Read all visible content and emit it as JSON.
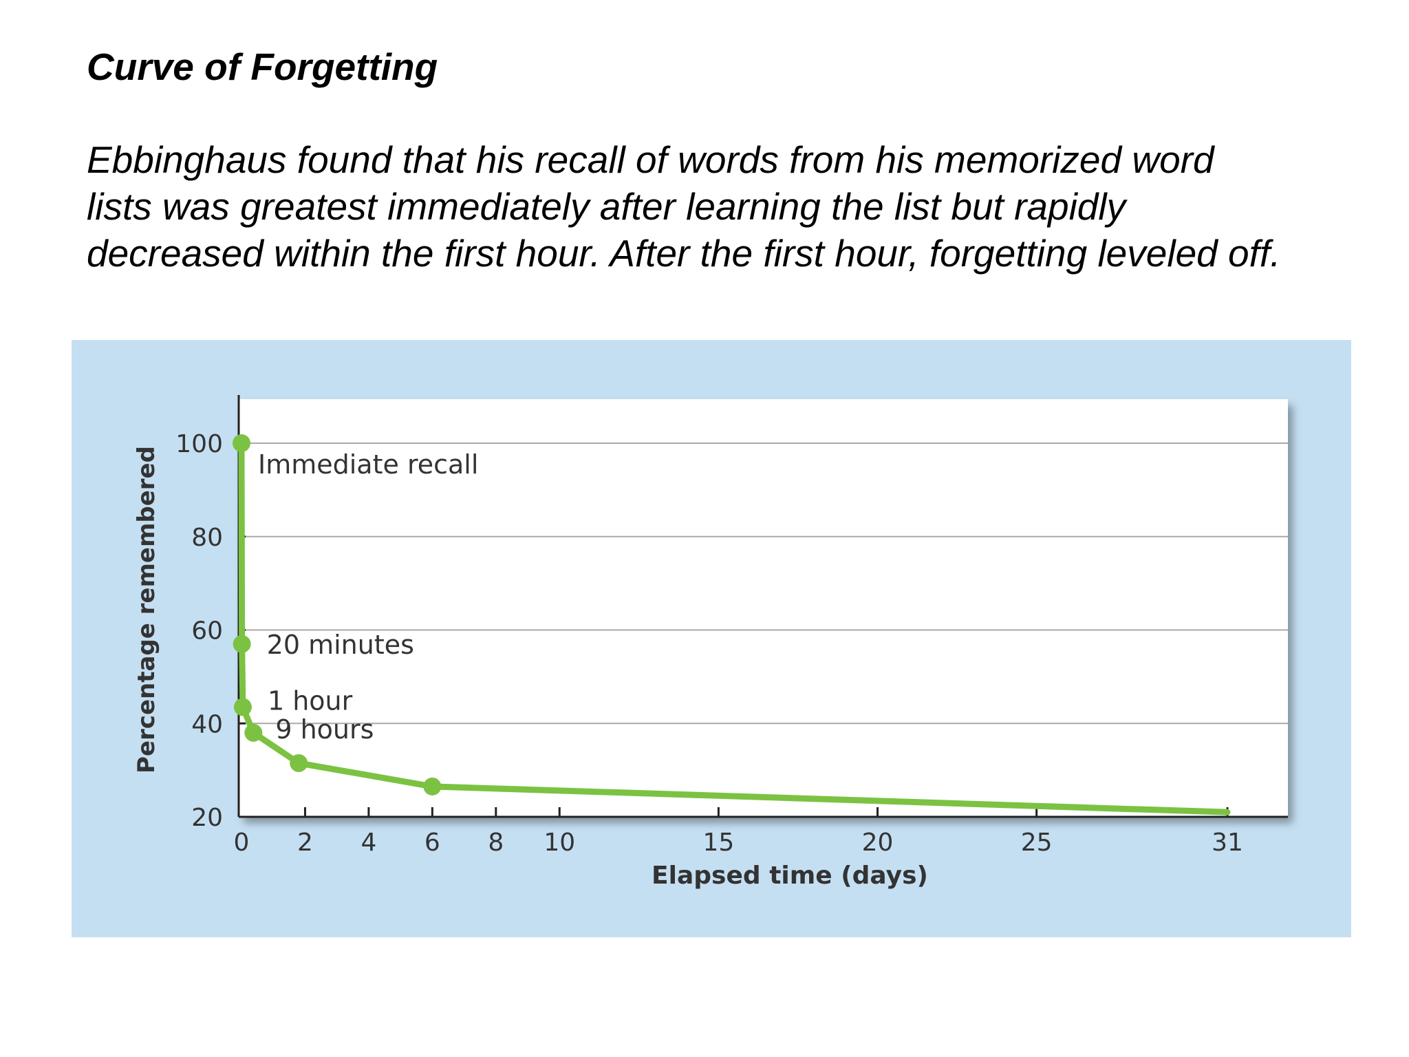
{
  "slide": {
    "title": "Curve of Forgetting",
    "body_lines": [
      "Ebbinghaus found that his recall of words from his memorized word",
      "lists was greatest immediately after learning the list but rapidly",
      "decreased within the first hour. After the first hour, forgetting leveled off."
    ]
  },
  "chart_data": {
    "type": "line",
    "title": "",
    "xlabel": "Elapsed time (days)",
    "ylabel": "Percentage remembered",
    "xlim": [
      0,
      31
    ],
    "ylim": [
      20,
      110
    ],
    "x_ticks": [
      0,
      2,
      4,
      6,
      8,
      10,
      15,
      20,
      25,
      31
    ],
    "y_ticks": [
      20,
      40,
      60,
      80,
      100
    ],
    "grid": true,
    "legend": "none",
    "series": [
      {
        "x": [
          0,
          0.014,
          0.042,
          0.375,
          1.8,
          6,
          31
        ],
        "y": [
          100,
          57,
          43.5,
          38,
          31.5,
          26.5,
          21
        ]
      }
    ],
    "annotations": [
      {
        "text": "Immediate recall",
        "x": 0,
        "y": 100
      },
      {
        "text": "20 minutes",
        "x": 0.014,
        "y": 57
      },
      {
        "text": "1 hour",
        "x": 0.042,
        "y": 43.5
      },
      {
        "text": "9 hours",
        "x": 0.375,
        "y": 38
      }
    ],
    "colors": {
      "panel_background": "#c5dff2",
      "plot_background": "#ffffff",
      "line": "#7cc242",
      "gridline": "#a9a9a9",
      "axis": "#222222",
      "text": "#333333"
    }
  }
}
